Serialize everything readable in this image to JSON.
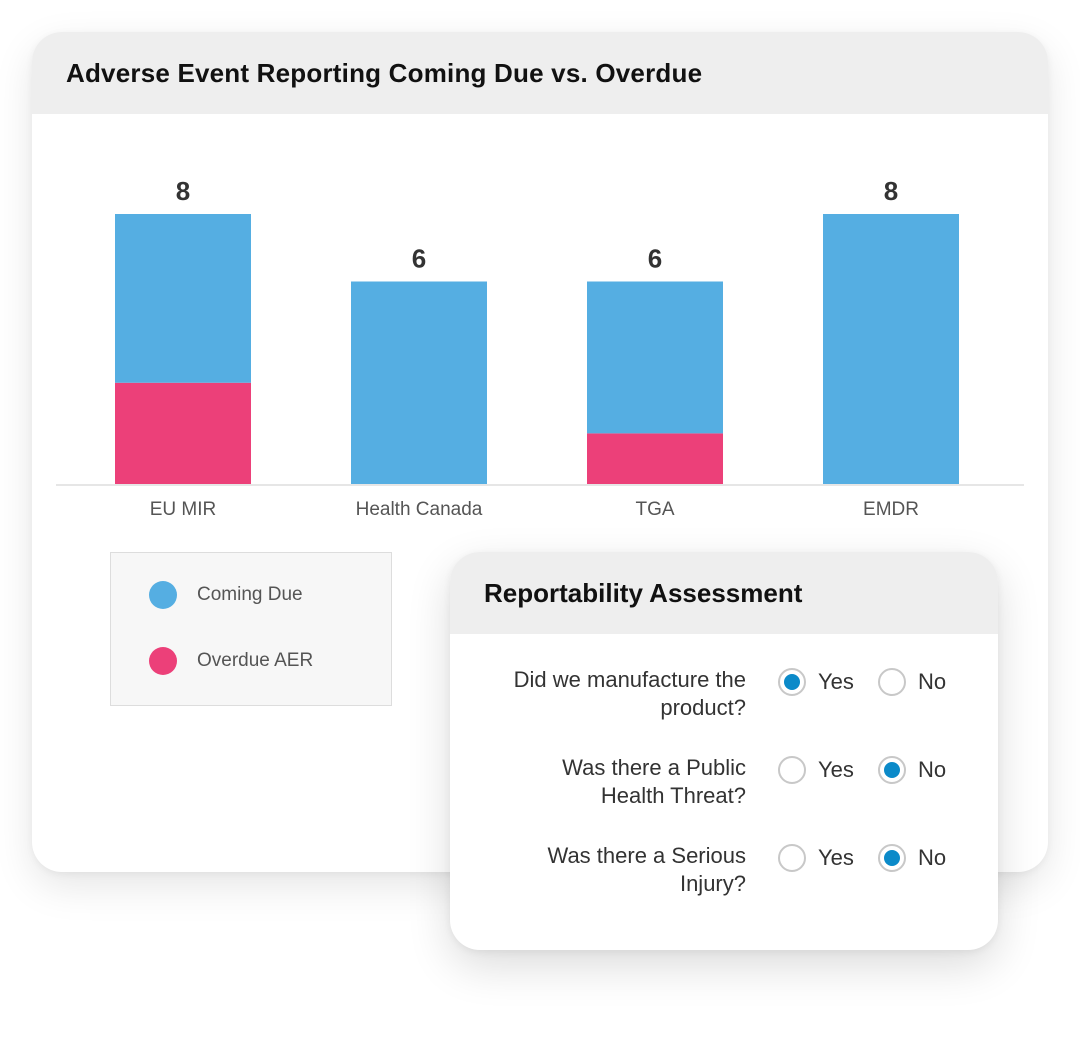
{
  "chart_card": {
    "title": "Adverse Event Reporting Coming Due vs. Overdue"
  },
  "colors": {
    "coming_due": "#55aee2",
    "overdue": "#ec4079",
    "radio_selected": "#0b8ac9"
  },
  "chart_data": {
    "type": "bar",
    "stacked": true,
    "categories": [
      "EU MIR",
      "Health Canada",
      "TGA",
      "EMDR"
    ],
    "series": [
      {
        "name": "Coming Due",
        "values": [
          5,
          6,
          4.5,
          8
        ]
      },
      {
        "name": "Overdue AER",
        "values": [
          3,
          0,
          1.5,
          0
        ]
      }
    ],
    "totals": [
      "8",
      "6",
      "6",
      "8"
    ],
    "title": "Adverse Event Reporting Coming Due vs. Overdue",
    "xlabel": "",
    "ylabel": "",
    "ylim": [
      0,
      8
    ],
    "grid": false,
    "legend_position": "bottom-left"
  },
  "legend": {
    "items": [
      {
        "label": "Coming Due",
        "color": "#55aee2"
      },
      {
        "label": "Overdue AER",
        "color": "#ec4079"
      }
    ]
  },
  "assessment": {
    "title": "Reportability Assessment",
    "questions": [
      {
        "text_line1": "Did we manufacture the",
        "text_line2": "product?",
        "yes_label": "Yes",
        "no_label": "No",
        "selected": "Yes"
      },
      {
        "text_line1": "Was there a Public",
        "text_line2": "Health Threat?",
        "yes_label": "Yes",
        "no_label": "No",
        "selected": "No"
      },
      {
        "text_line1": "Was there a Serious",
        "text_line2": "Injury?",
        "yes_label": "Yes",
        "no_label": "No",
        "selected": "No"
      }
    ]
  }
}
